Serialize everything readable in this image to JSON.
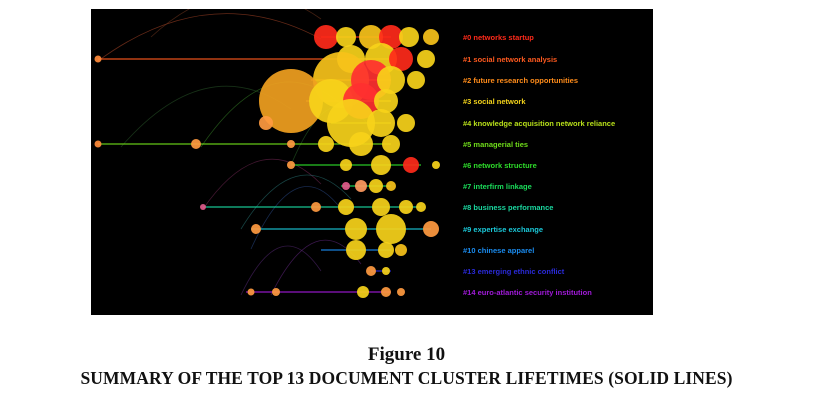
{
  "figure": {
    "number_label": "Figure 10",
    "caption": "SUMMARY OF THE TOP 13 DOCUMENT CLUSTER LIFETIMES (SOLID LINES)"
  },
  "clusters": [
    {
      "label": "#0 networks startup",
      "color": "#ff2a1a"
    },
    {
      "label": "#1 social network analysis",
      "color": "#ff5a1f"
    },
    {
      "label": "#2 future research opportunities",
      "color": "#ff8c1a"
    },
    {
      "label": "#3 social network",
      "color": "#f2d21a"
    },
    {
      "label": "#4 knowledge acquisition network reliance",
      "color": "#b8e01a"
    },
    {
      "label": "#5 managerial ties",
      "color": "#6fdc1a"
    },
    {
      "label": "#6 network structure",
      "color": "#2edc2a"
    },
    {
      "label": "#7 interfirm linkage",
      "color": "#1adc5a"
    },
    {
      "label": "#8 business performance",
      "color": "#1ad8a0"
    },
    {
      "label": "#9 expertise exchange",
      "color": "#1ac8d8"
    },
    {
      "label": "#10 chinese apparel",
      "color": "#1a8cf0"
    },
    {
      "label": "#13 emerging ethnic conflict",
      "color": "#2a2ad8"
    },
    {
      "label": "#14 euro-atlantic security institution",
      "color": "#a01ad8"
    }
  ]
}
